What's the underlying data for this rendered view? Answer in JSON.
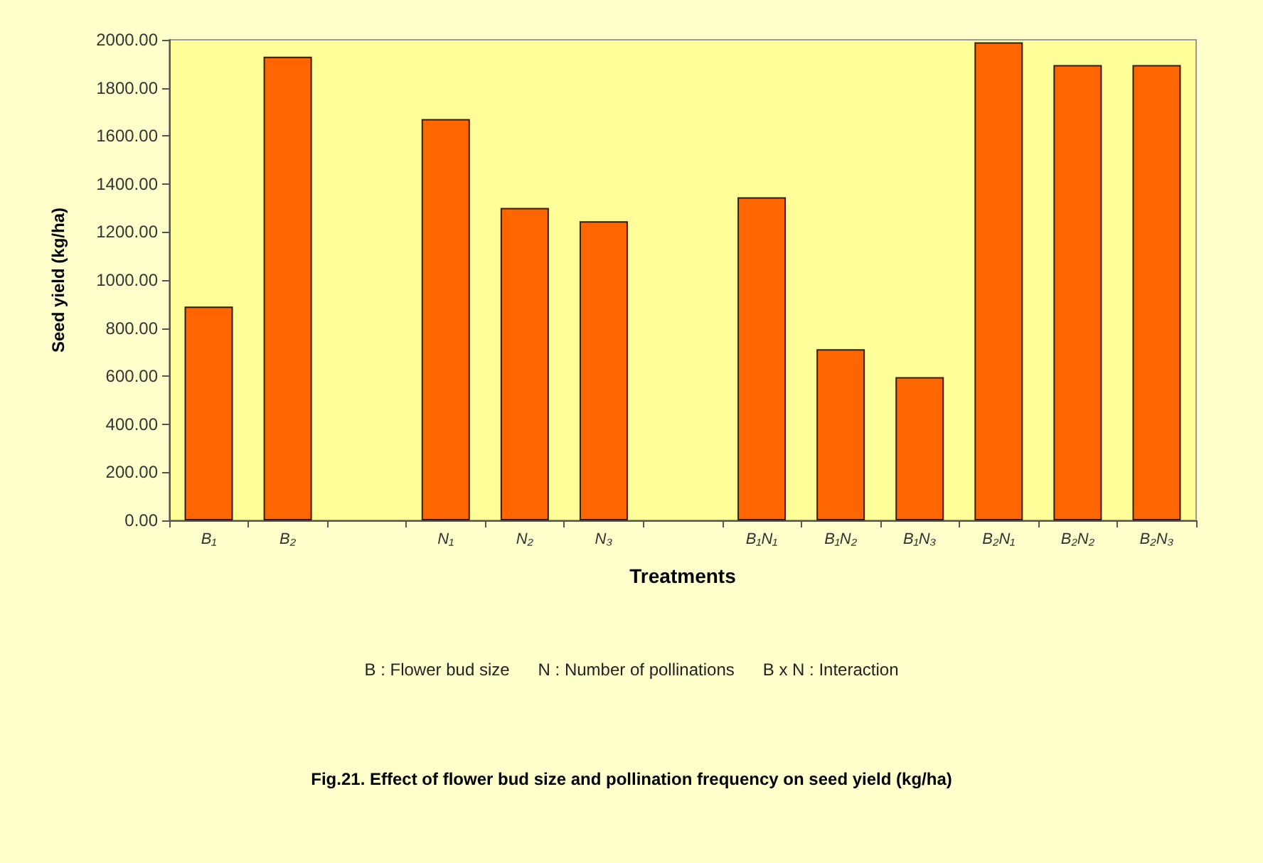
{
  "chart_data": {
    "type": "bar",
    "title": "Fig.21. Effect of flower bud size and pollination frequency on seed yield (kg/ha)",
    "xlabel": "Treatments",
    "ylabel": "Seed yield (kg/ha)",
    "annotations": [
      "B : Flower bud size      N : Number of pollinations      B x N : Interaction"
    ],
    "categories": [
      "B₁",
      "B₂",
      null,
      "N₁",
      "N₂",
      "N₃",
      null,
      "B₁N₁",
      "B₁N₂",
      "B₁N₃",
      "B₂N₁",
      "B₂N₂",
      "B₂N₃"
    ],
    "values": [
      890,
      1930,
      null,
      1670,
      1300,
      1245,
      null,
      1345,
      712,
      596,
      1990,
      1895,
      1895
    ],
    "color": "#ff6600",
    "ylim": [
      0,
      2000
    ],
    "yticks": [
      {
        "value": 0,
        "label": "0.00"
      },
      {
        "value": 200,
        "label": "200.00"
      },
      {
        "value": 400,
        "label": "400.00"
      },
      {
        "value": 600,
        "label": "600.00"
      },
      {
        "value": 800,
        "label": "800.00"
      },
      {
        "value": 1000,
        "label": "1000.00"
      },
      {
        "value": 1200,
        "label": "1200.00"
      },
      {
        "value": 1400,
        "label": "1400.00"
      },
      {
        "value": 1600,
        "label": "1600.00"
      },
      {
        "value": 1800,
        "label": "1800.00"
      },
      {
        "value": 2000,
        "label": "2000.00"
      }
    ],
    "grid": false
  }
}
